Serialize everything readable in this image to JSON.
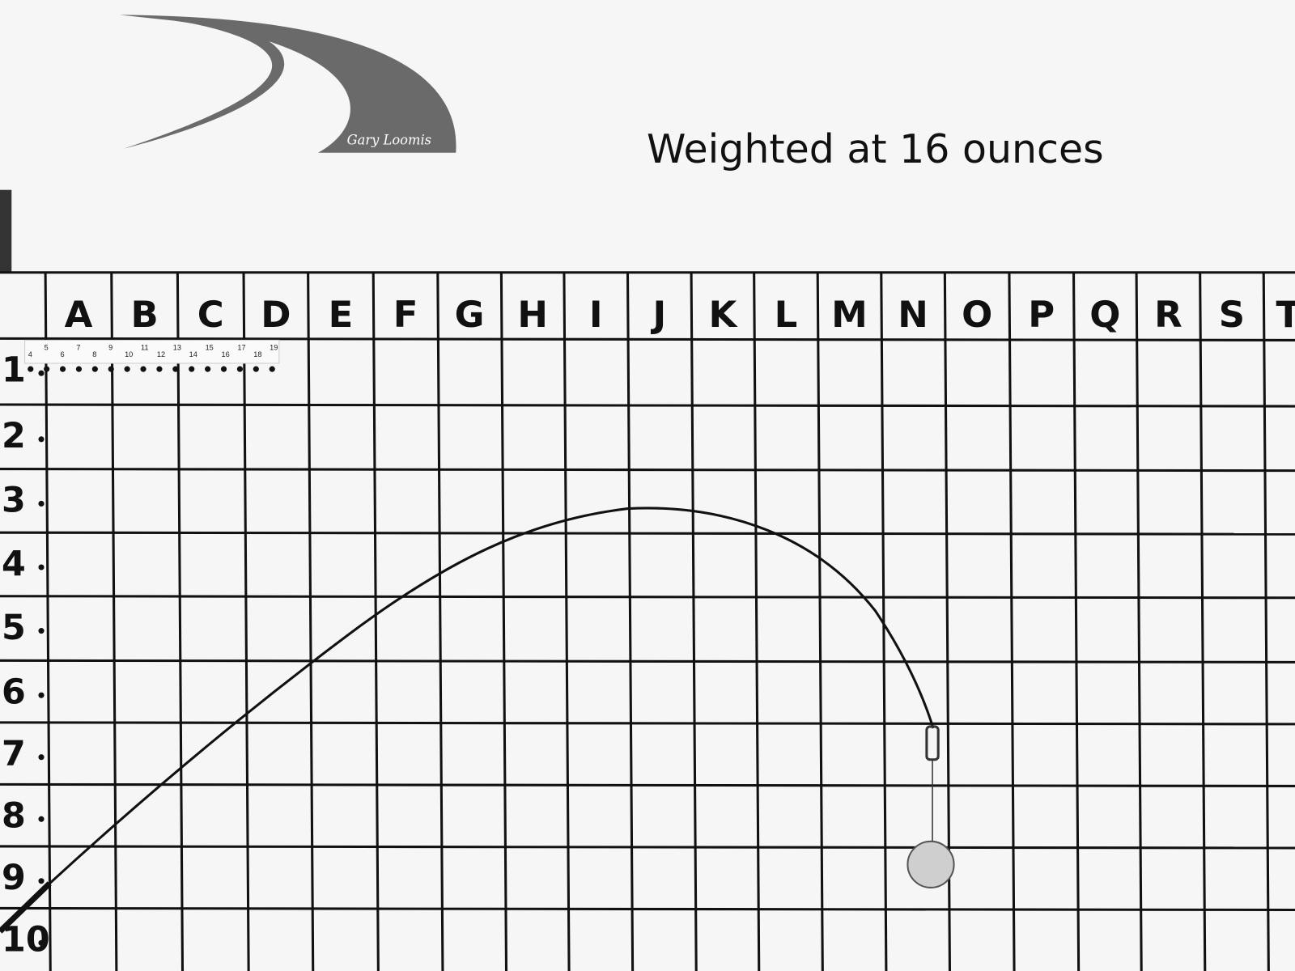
{
  "title": "Weighted at 16 ounces",
  "logo": {
    "signature": "Gary Loomis",
    "color": "#6a6a6a"
  },
  "grid": {
    "columns": [
      "A",
      "B",
      "C",
      "D",
      "E",
      "F",
      "G",
      "H",
      "I",
      "J",
      "K",
      "L",
      "M",
      "N",
      "O",
      "P",
      "Q",
      "R",
      "S",
      "T"
    ],
    "rows": [
      "1",
      "2",
      "3",
      "4",
      "5",
      "6",
      "7",
      "8",
      "9",
      "10"
    ]
  },
  "ruler_numbers": [
    "4",
    "5",
    "6",
    "7",
    "8",
    "9",
    "10",
    "11",
    "12",
    "13",
    "14",
    "15",
    "16",
    "17",
    "18",
    "19"
  ],
  "rod": {
    "tip_position": "N7",
    "weight_position": "N9",
    "peak_row": "3-4",
    "peak_column": "I-J"
  }
}
